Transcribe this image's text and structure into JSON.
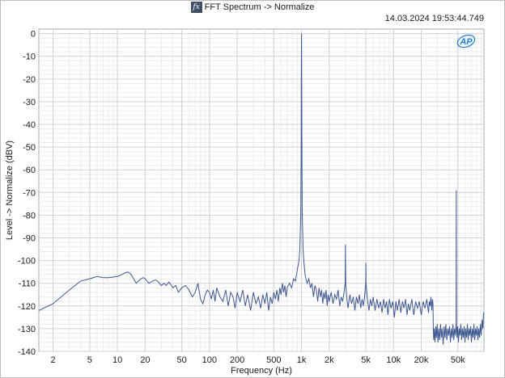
{
  "header": {
    "icon_name": "fx-icon",
    "icon_text": "fx",
    "title": "FFT Spectrum -> Normalize",
    "timestamp": "14.03.2024 19:53:44.749",
    "logo_text": "AP"
  },
  "colors": {
    "trace": "#3d5791",
    "grid_major": "#d0d0d0",
    "grid_minor": "#ececec",
    "logo": "#1a7fd6"
  },
  "chart_data": {
    "type": "line",
    "xlabel": "Frequency (Hz)",
    "ylabel": "Level -> Normalize (dBV)",
    "xscale": "log",
    "xlim": [
      1.4,
      96000
    ],
    "ylim": [
      -140,
      2
    ],
    "grid": true,
    "x_ticks": [
      {
        "v": 2,
        "label": "2"
      },
      {
        "v": 5,
        "label": "5"
      },
      {
        "v": 10,
        "label": "10"
      },
      {
        "v": 20,
        "label": "20"
      },
      {
        "v": 50,
        "label": "50"
      },
      {
        "v": 100,
        "label": "100"
      },
      {
        "v": 200,
        "label": "200"
      },
      {
        "v": 500,
        "label": "500"
      },
      {
        "v": 1000,
        "label": "1k"
      },
      {
        "v": 2000,
        "label": "2k"
      },
      {
        "v": 5000,
        "label": "5k"
      },
      {
        "v": 10000,
        "label": "10k"
      },
      {
        "v": 20000,
        "label": "20k"
      },
      {
        "v": 50000,
        "label": "50k"
      }
    ],
    "y_ticks": [
      0,
      -10,
      -20,
      -30,
      -40,
      -50,
      -60,
      -70,
      -80,
      -90,
      -100,
      -110,
      -120,
      -130,
      -140
    ],
    "series": [
      {
        "values": [
          [
            1.4,
            -122
          ],
          [
            2,
            -119
          ],
          [
            3,
            -113
          ],
          [
            4,
            -109
          ],
          [
            5,
            -108
          ],
          [
            6,
            -107
          ],
          [
            7,
            -107.5
          ],
          [
            8,
            -107.5
          ],
          [
            10,
            -107
          ],
          [
            12,
            -105.5
          ],
          [
            13,
            -105
          ],
          [
            14,
            -106
          ],
          [
            15,
            -108
          ],
          [
            16,
            -110
          ],
          [
            17,
            -109
          ],
          [
            18,
            -108
          ],
          [
            19,
            -107.5
          ],
          [
            20,
            -108
          ],
          [
            22,
            -110
          ],
          [
            24,
            -109
          ],
          [
            26,
            -108.5
          ],
          [
            28,
            -109.5
          ],
          [
            30,
            -111
          ],
          [
            32,
            -110
          ],
          [
            34,
            -111
          ],
          [
            36,
            -109.5
          ],
          [
            38,
            -110.5
          ],
          [
            40,
            -112
          ],
          [
            43,
            -111
          ],
          [
            46,
            -114
          ],
          [
            50,
            -112
          ],
          [
            55,
            -111
          ],
          [
            60,
            -113
          ],
          [
            65,
            -116
          ],
          [
            70,
            -114
          ],
          [
            75,
            -110
          ],
          [
            80,
            -117
          ],
          [
            85,
            -119
          ],
          [
            90,
            -115
          ],
          [
            95,
            -113
          ],
          [
            100,
            -114
          ],
          [
            105,
            -117
          ],
          [
            110,
            -113
          ],
          [
            115,
            -118
          ],
          [
            120,
            -112
          ],
          [
            130,
            -116
          ],
          [
            140,
            -118
          ],
          [
            150,
            -113
          ],
          [
            160,
            -120
          ],
          [
            170,
            -114
          ],
          [
            180,
            -116
          ],
          [
            190,
            -121
          ],
          [
            200,
            -114
          ],
          [
            215,
            -118
          ],
          [
            230,
            -113
          ],
          [
            245,
            -120
          ],
          [
            260,
            -115
          ],
          [
            280,
            -122
          ],
          [
            300,
            -114
          ],
          [
            320,
            -119
          ],
          [
            340,
            -116
          ],
          [
            360,
            -121
          ],
          [
            380,
            -115
          ],
          [
            400,
            -119
          ],
          [
            420,
            -114
          ],
          [
            440,
            -122
          ],
          [
            460,
            -116
          ],
          [
            480,
            -119
          ],
          [
            500,
            -114
          ],
          [
            520,
            -117
          ],
          [
            540,
            -113
          ],
          [
            560,
            -118
          ],
          [
            580,
            -112
          ],
          [
            600,
            -115
          ],
          [
            620,
            -110
          ],
          [
            640,
            -114
          ],
          [
            660,
            -111
          ],
          [
            680,
            -116
          ],
          [
            700,
            -112
          ],
          [
            740,
            -110
          ],
          [
            780,
            -112
          ],
          [
            820,
            -108
          ],
          [
            860,
            -109
          ],
          [
            900,
            -104
          ],
          [
            940,
            -100
          ],
          [
            960,
            -95
          ],
          [
            980,
            -80
          ],
          [
            990,
            -55
          ],
          [
            995,
            -20
          ],
          [
            1000,
            0
          ],
          [
            1005,
            -20
          ],
          [
            1010,
            -55
          ],
          [
            1020,
            -80
          ],
          [
            1040,
            -95
          ],
          [
            1060,
            -100
          ],
          [
            1080,
            -104
          ],
          [
            1100,
            -107
          ],
          [
            1150,
            -110
          ],
          [
            1200,
            -108
          ],
          [
            1250,
            -112
          ],
          [
            1300,
            -110
          ],
          [
            1350,
            -116
          ],
          [
            1400,
            -111
          ],
          [
            1450,
            -113
          ],
          [
            1500,
            -118
          ],
          [
            1550,
            -112
          ],
          [
            1600,
            -116
          ],
          [
            1650,
            -113
          ],
          [
            1700,
            -119
          ],
          [
            1750,
            -114
          ],
          [
            1800,
            -117
          ],
          [
            1850,
            -113
          ],
          [
            1900,
            -120
          ],
          [
            1950,
            -115
          ],
          [
            2000,
            -118
          ],
          [
            2100,
            -114
          ],
          [
            2200,
            -119
          ],
          [
            2300,
            -115
          ],
          [
            2400,
            -117
          ],
          [
            2500,
            -113
          ],
          [
            2600,
            -120
          ],
          [
            2700,
            -116
          ],
          [
            2800,
            -118
          ],
          [
            2900,
            -114
          ],
          [
            2980,
            -110
          ],
          [
            3000,
            -93
          ],
          [
            3020,
            -110
          ],
          [
            3100,
            -116
          ],
          [
            3200,
            -121
          ],
          [
            3350,
            -115
          ],
          [
            3500,
            -119
          ],
          [
            3650,
            -116
          ],
          [
            3800,
            -122
          ],
          [
            3950,
            -116
          ],
          [
            4100,
            -119
          ],
          [
            4250,
            -115
          ],
          [
            4400,
            -121
          ],
          [
            4550,
            -117
          ],
          [
            4700,
            -120
          ],
          [
            4850,
            -116
          ],
          [
            4980,
            -110
          ],
          [
            5000,
            -101
          ],
          [
            5020,
            -110
          ],
          [
            5200,
            -117
          ],
          [
            5400,
            -122
          ],
          [
            5600,
            -117
          ],
          [
            5800,
            -120
          ],
          [
            6000,
            -116
          ],
          [
            6300,
            -122
          ],
          [
            6600,
            -117
          ],
          [
            6900,
            -121
          ],
          [
            7200,
            -118
          ],
          [
            7500,
            -123
          ],
          [
            7800,
            -117
          ],
          [
            8100,
            -121
          ],
          [
            8400,
            -118
          ],
          [
            8700,
            -124
          ],
          [
            9000,
            -117
          ],
          [
            9400,
            -121
          ],
          [
            9800,
            -118
          ],
          [
            10200,
            -125
          ],
          [
            10600,
            -118
          ],
          [
            11000,
            -122
          ],
          [
            11500,
            -117
          ],
          [
            12000,
            -123
          ],
          [
            12500,
            -118
          ],
          [
            13000,
            -121
          ],
          [
            13500,
            -117
          ],
          [
            14000,
            -124
          ],
          [
            14500,
            -119
          ],
          [
            15000,
            -122
          ],
          [
            15800,
            -117
          ],
          [
            16600,
            -124
          ],
          [
            17400,
            -118
          ],
          [
            18200,
            -121
          ],
          [
            19000,
            -118
          ],
          [
            20000,
            -124
          ],
          [
            21000,
            -118
          ],
          [
            22000,
            -121
          ],
          [
            23000,
            -117
          ],
          [
            24000,
            -123
          ],
          [
            24500,
            -118
          ],
          [
            25000,
            -120
          ],
          [
            25500,
            -116
          ],
          [
            26000,
            -122
          ],
          [
            26500,
            -117
          ],
          [
            26800,
            -119
          ],
          [
            27000,
            -128
          ],
          [
            27300,
            -135
          ],
          [
            27700,
            -130
          ],
          [
            28200,
            -136
          ],
          [
            28700,
            -129
          ],
          [
            29200,
            -134
          ],
          [
            29800,
            -128
          ],
          [
            30400,
            -136
          ],
          [
            31000,
            -130
          ],
          [
            31700,
            -135
          ],
          [
            32400,
            -128
          ],
          [
            33100,
            -134
          ],
          [
            33800,
            -130
          ],
          [
            34600,
            -137
          ],
          [
            35400,
            -129
          ],
          [
            36200,
            -134
          ],
          [
            37000,
            -128
          ],
          [
            37900,
            -135
          ],
          [
            38800,
            -130
          ],
          [
            39700,
            -133
          ],
          [
            40600,
            -129
          ],
          [
            41500,
            -136
          ],
          [
            42400,
            -130
          ],
          [
            43300,
            -134
          ],
          [
            44200,
            -128
          ],
          [
            45100,
            -135
          ],
          [
            46000,
            -130
          ],
          [
            47000,
            -133
          ],
          [
            47800,
            -128
          ],
          [
            48000,
            -69
          ],
          [
            48200,
            -128
          ],
          [
            48800,
            -134
          ],
          [
            49700,
            -129
          ],
          [
            50700,
            -136
          ],
          [
            51700,
            -130
          ],
          [
            52700,
            -133
          ],
          [
            53800,
            -128
          ],
          [
            54900,
            -135
          ],
          [
            56000,
            -130
          ],
          [
            57200,
            -134
          ],
          [
            58400,
            -129
          ],
          [
            59600,
            -136
          ],
          [
            60800,
            -130
          ],
          [
            62100,
            -134
          ],
          [
            63400,
            -128
          ],
          [
            64700,
            -135
          ],
          [
            66000,
            -130
          ],
          [
            67400,
            -133
          ],
          [
            68800,
            -129
          ],
          [
            70200,
            -136
          ],
          [
            71700,
            -130
          ],
          [
            73200,
            -134
          ],
          [
            74700,
            -128
          ],
          [
            76200,
            -135
          ],
          [
            77800,
            -130
          ],
          [
            79400,
            -133
          ],
          [
            81000,
            -129
          ],
          [
            82700,
            -135
          ],
          [
            84400,
            -130
          ],
          [
            86100,
            -134
          ],
          [
            87900,
            -128
          ],
          [
            89700,
            -133
          ],
          [
            91500,
            -126
          ],
          [
            93300,
            -130
          ],
          [
            95000,
            -123
          ],
          [
            96000,
            -123
          ]
        ]
      }
    ]
  }
}
